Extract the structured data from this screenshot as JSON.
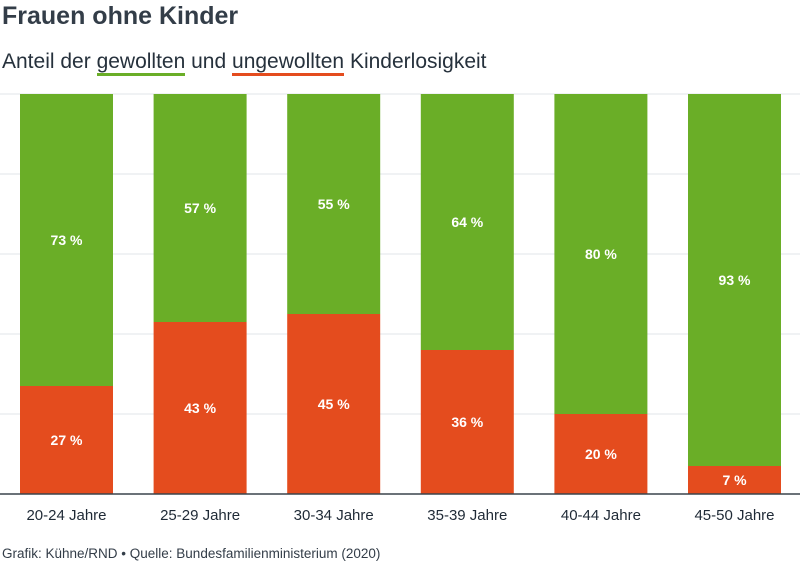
{
  "header": {
    "title": "Frauen ohne Kinder",
    "subtitle_prefix": "Anteil der ",
    "subtitle_green": "gewollten",
    "subtitle_mid": " und ",
    "subtitle_red": "ungewollten",
    "subtitle_suffix": " Kinderlosigkeit"
  },
  "chart_data": {
    "type": "bar",
    "stacked": true,
    "percent_stacked": true,
    "categories": [
      "20-24 Jahre",
      "25-29 Jahre",
      "30-34 Jahre",
      "35-39 Jahre",
      "40-44 Jahre",
      "45-50 Jahre"
    ],
    "series": [
      {
        "values": [
          27,
          43,
          45,
          36,
          20,
          7
        ],
        "color": "#e44c1e"
      },
      {
        "values": [
          73,
          57,
          55,
          64,
          80,
          93
        ],
        "color": "#6aae27"
      }
    ],
    "value_suffix": " %",
    "ylim": [
      0,
      100
    ],
    "grid": true,
    "colors": {
      "grid": "#e1e4e8",
      "baseline": "#3a434c",
      "label": "#ffffff",
      "tick": "#1f2a36"
    }
  },
  "footer": {
    "credit": "Grafik: Kühne/RND • Quelle: Bundesfamilienministerium (2020)"
  }
}
